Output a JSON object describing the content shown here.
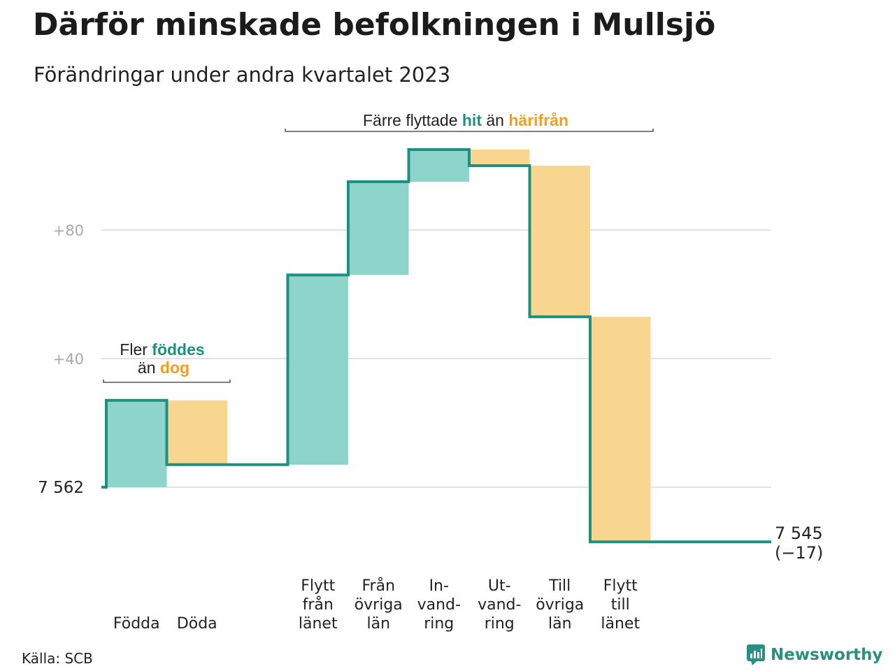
{
  "title": "Därför minskade befolkningen i Mullsjö",
  "subtitle": "Förändringar under andra kvartalet 2023",
  "source": "Källa: SCB",
  "brand": "Newsworthy",
  "colors": {
    "increase": "#8dd4cb",
    "decrease": "#f9d690",
    "line": "#1f8f80",
    "accent_teal": "#1f8f80",
    "accent_orange": "#f0a020",
    "grid": "#e2e2e2",
    "axis_text": "#aaaaaa"
  },
  "annotations": {
    "births": {
      "prefix": "Fler",
      "teal_word": "föddes",
      "connector": "än",
      "orange_word": "dog"
    },
    "migration": {
      "prefix": "Färre flyttade",
      "teal_word": "hit",
      "connector": "än",
      "orange_word": "härifrån"
    }
  },
  "chart_data": {
    "type": "waterfall",
    "start_value": 7562,
    "start_label": "7  562",
    "end_value": 7545,
    "end_label": "7 545",
    "end_change_label": "(−17)",
    "y_ticks": [
      {
        "value": 80,
        "label": "+80"
      },
      {
        "value": 40,
        "label": "+40"
      }
    ],
    "grid": true,
    "steps": [
      {
        "label": [
          "Födda"
        ],
        "change": 27,
        "kind": "increase"
      },
      {
        "label": [
          "Döda"
        ],
        "change": -20,
        "kind": "decrease"
      },
      {
        "label": [],
        "change": 0,
        "kind": "gap"
      },
      {
        "label": [
          "Flytt",
          "från",
          "länet"
        ],
        "change": 59,
        "kind": "increase"
      },
      {
        "label": [
          "Från",
          "övriga",
          "län"
        ],
        "change": 29,
        "kind": "increase"
      },
      {
        "label": [
          "In-",
          "vand-",
          "ring"
        ],
        "change": 10,
        "kind": "increase"
      },
      {
        "label": [
          "Ut-",
          "vand-",
          "ring"
        ],
        "change": -5,
        "kind": "decrease"
      },
      {
        "label": [
          "Till",
          "övriga",
          "län"
        ],
        "change": -47,
        "kind": "decrease"
      },
      {
        "label": [
          "Flytt",
          "till",
          "länet"
        ],
        "change": -70,
        "kind": "decrease"
      }
    ]
  }
}
